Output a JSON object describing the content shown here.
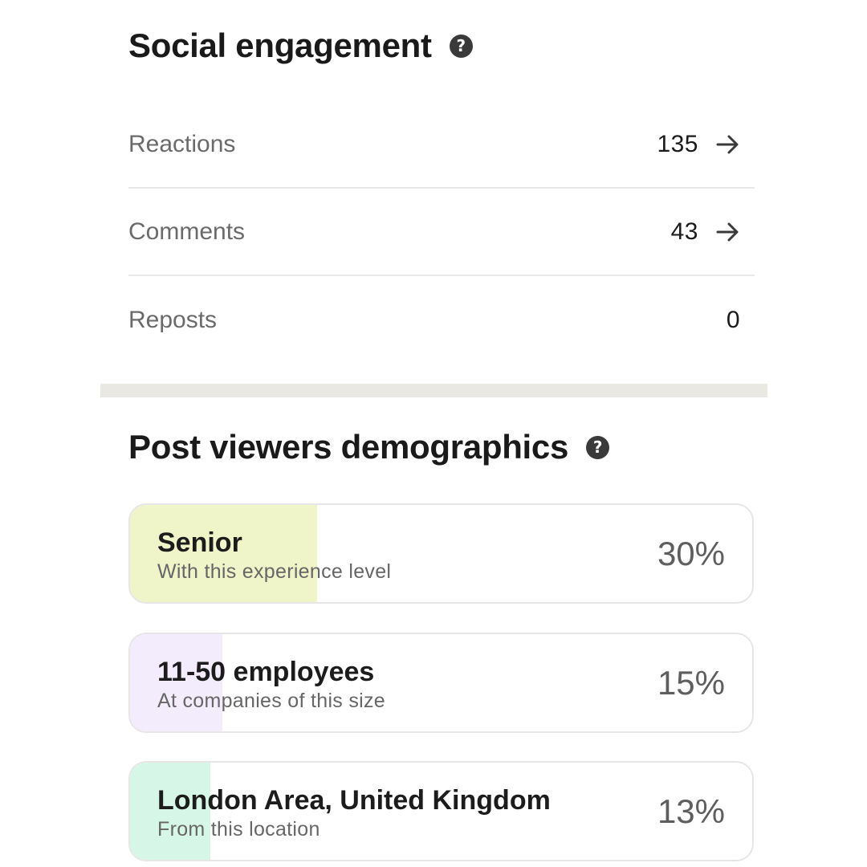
{
  "social": {
    "title": "Social engagement",
    "help_icon": "question-mark-icon",
    "rows": [
      {
        "label": "Reactions",
        "value": "135",
        "has_arrow": true
      },
      {
        "label": "Comments",
        "value": "43",
        "has_arrow": true
      },
      {
        "label": "Reposts",
        "value": "0",
        "has_arrow": false
      }
    ]
  },
  "demographics": {
    "title": "Post viewers demographics",
    "help_icon": "question-mark-icon",
    "items": [
      {
        "title": "Senior",
        "subtitle": "With this experience level",
        "percent": "30%",
        "fill_color": "#eff5c9"
      },
      {
        "title": "11-50 employees",
        "subtitle": "At companies of this size",
        "percent": "15%",
        "fill_color": "#f3ecfd"
      },
      {
        "title": "London Area, United Kingdom",
        "subtitle": "From this location",
        "percent": "13%",
        "fill_color": "#d6f7e8"
      }
    ]
  },
  "help_glyph": "?"
}
